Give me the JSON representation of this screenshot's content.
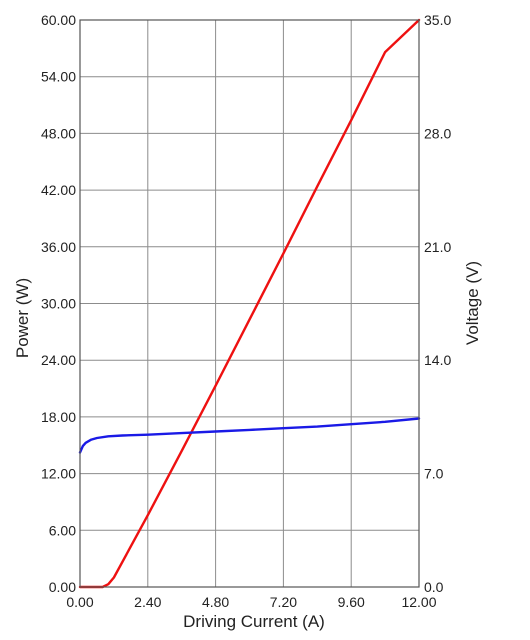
{
  "chart_data": {
    "type": "line",
    "title": "",
    "xlabel": "Driving Current (A)",
    "ylabel_left": "Power (W)",
    "ylabel_right": "Voltage (V)",
    "xlim": [
      0,
      12
    ],
    "ylim_left": [
      0,
      60
    ],
    "ylim_right": [
      0,
      35
    ],
    "grid": true,
    "x_ticks": [
      "0.00",
      "2.40",
      "4.80",
      "7.20",
      "9.60",
      "12.00"
    ],
    "y_left_ticks": [
      "0.00",
      "6.00",
      "12.00",
      "18.00",
      "24.00",
      "30.00",
      "36.00",
      "42.00",
      "48.00",
      "54.00",
      "60.00"
    ],
    "y_right_ticks": [
      "0.0",
      "7.0",
      "14.0",
      "21.0",
      "28.0",
      "35.0"
    ],
    "series": [
      {
        "axis": "left",
        "color": "#ee1111",
        "x": [
          0.0,
          0.8,
          1.0,
          1.2,
          2.4,
          3.6,
          4.8,
          6.0,
          7.2,
          8.4,
          9.6,
          10.8,
          12.0
        ],
        "y": [
          0.0,
          0.0,
          0.3,
          1.0,
          7.6,
          14.4,
          21.3,
          28.3,
          35.3,
          42.4,
          49.4,
          56.6,
          60.0
        ]
      },
      {
        "axis": "right",
        "color": "#1a1ae6",
        "x": [
          0.0,
          0.1,
          0.2,
          0.4,
          0.6,
          1.0,
          1.5,
          2.4,
          3.6,
          4.8,
          6.0,
          7.2,
          8.4,
          9.6,
          10.8,
          12.0
        ],
        "y": [
          8.3,
          8.7,
          8.9,
          9.1,
          9.2,
          9.3,
          9.35,
          9.4,
          9.5,
          9.6,
          9.7,
          9.8,
          9.9,
          10.05,
          10.2,
          10.4
        ]
      }
    ]
  }
}
